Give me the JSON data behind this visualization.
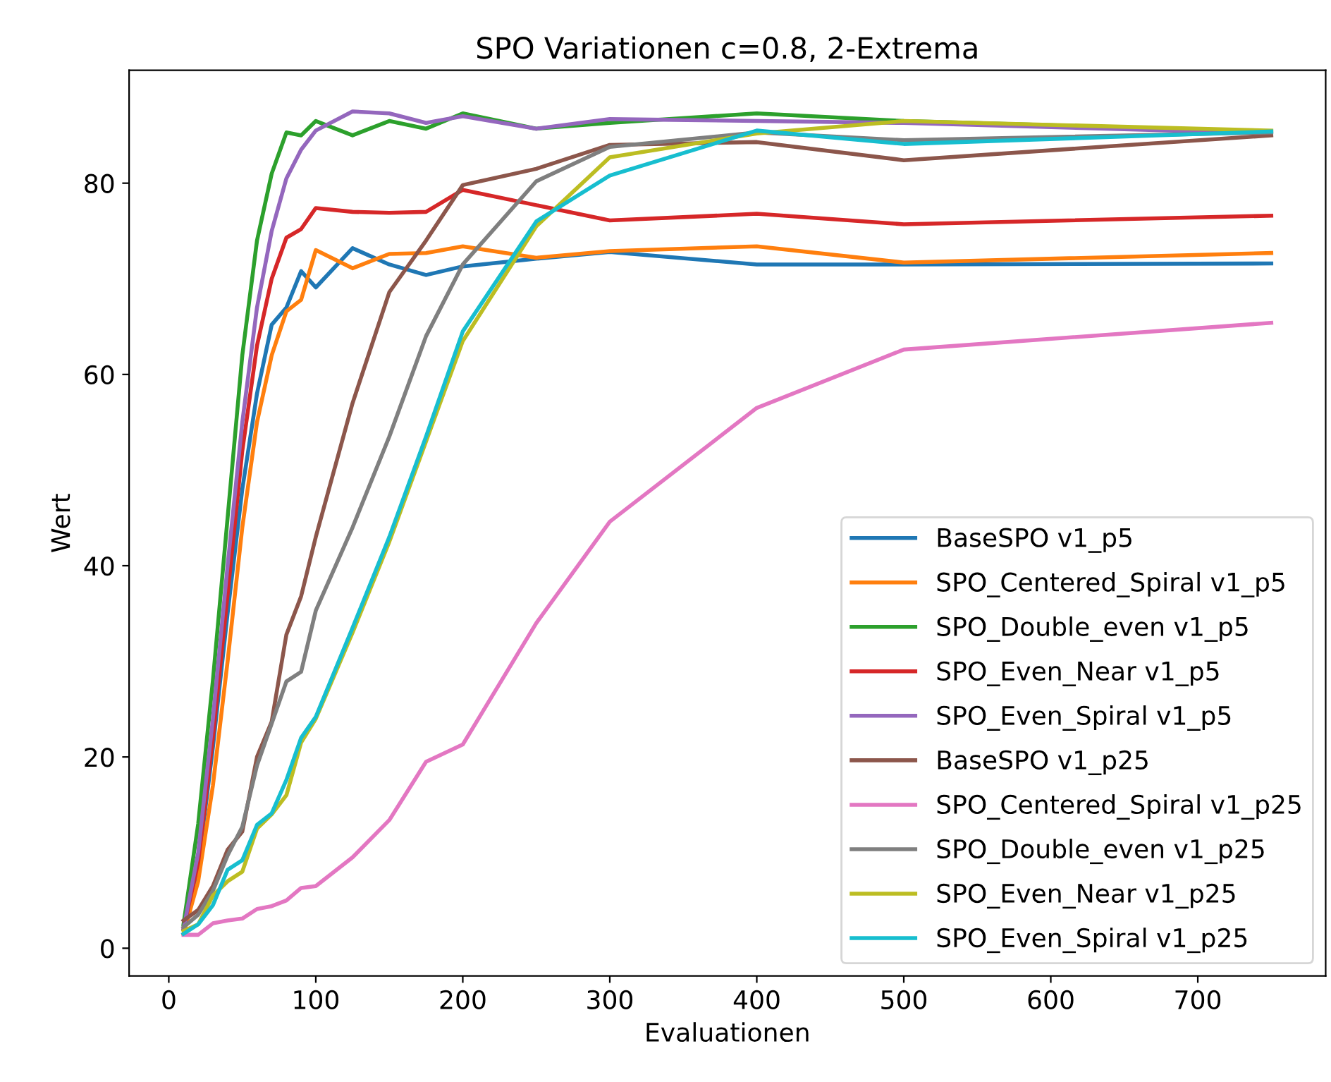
{
  "chart_data": {
    "type": "line",
    "title": "SPO Variationen c=0.8, 2-Extrema",
    "xlabel": "Evaluationen",
    "ylabel": "Wert",
    "x": [
      10,
      20,
      30,
      40,
      50,
      60,
      70,
      80,
      90,
      100,
      125,
      150,
      175,
      200,
      250,
      300,
      400,
      500,
      750
    ],
    "xlim": [
      -27,
      787
    ],
    "xticks": [
      0,
      100,
      200,
      300,
      400,
      500,
      600,
      700
    ],
    "ylim": [
      -2.9,
      91.8
    ],
    "yticks": [
      0,
      20,
      40,
      60,
      80
    ],
    "grid": false,
    "legend": "bottom right",
    "marker": "none",
    "line_style": "solid",
    "series": [
      {
        "name": "BaseSPO v1_p5",
        "color": "#1f77b4",
        "values": [
          2,
          8.5,
          21,
          35,
          48,
          58,
          65.2,
          67,
          70.8,
          69.1,
          73.2,
          71.5,
          70.4,
          71.3,
          72.1,
          72.8,
          71.5,
          71.5,
          71.6
        ]
      },
      {
        "name": "SPO_Centered_Spiral v1_p5",
        "color": "#ff7f0e",
        "values": [
          1.5,
          7,
          17,
          30,
          44,
          55,
          62,
          66.6,
          67.8,
          73,
          71.1,
          72.6,
          72.7,
          73.4,
          72.2,
          72.9,
          73.4,
          71.7,
          72.7
        ]
      },
      {
        "name": "SPO_Double_even v1_p5",
        "color": "#2ca02c",
        "values": [
          2.5,
          13,
          28,
          45,
          62,
          74,
          81,
          85.3,
          85,
          86.5,
          85,
          86.5,
          85.7,
          87.3,
          85.7,
          86.3,
          87.3,
          86.5,
          85.4
        ]
      },
      {
        "name": "SPO_Even_Near v1_p5",
        "color": "#d62728",
        "values": [
          2,
          9,
          22,
          37,
          52,
          63,
          70,
          74.3,
          75.2,
          77.4,
          77,
          76.9,
          77,
          79.3,
          77.7,
          76.1,
          76.8,
          75.7,
          76.6
        ]
      },
      {
        "name": "SPO_Even_Spiral v1_p5",
        "color": "#9467bd",
        "values": [
          2,
          10,
          24,
          40,
          55,
          67,
          75,
          80.5,
          83.5,
          85.5,
          87.5,
          87.3,
          86.3,
          87,
          85.7,
          86.7,
          86.5,
          86.3,
          85.2
        ]
      },
      {
        "name": "BaseSPO v1_p25",
        "color": "#8c564b",
        "values": [
          2.9,
          4,
          6.5,
          10.3,
          12.2,
          20,
          23.7,
          32.8,
          36.8,
          43,
          57,
          68.6,
          74,
          79.8,
          81.5,
          84,
          84.3,
          82.4,
          85
        ]
      },
      {
        "name": "SPO_Centered_Spiral v1_p25",
        "color": "#e377c2",
        "values": [
          1.4,
          1.4,
          2.6,
          2.9,
          3.1,
          4.1,
          4.4,
          5,
          6.3,
          6.5,
          9.5,
          13.4,
          19.5,
          21.3,
          34,
          44.6,
          56.5,
          62.6,
          65.4
        ]
      },
      {
        "name": "SPO_Double_even v1_p25",
        "color": "#7f7f7f",
        "values": [
          2.2,
          3.5,
          6,
          9.7,
          12.7,
          19.1,
          23.5,
          27.9,
          28.9,
          35.3,
          44,
          53.5,
          64,
          71.5,
          80.2,
          83.8,
          85.3,
          84.5,
          85.3
        ]
      },
      {
        "name": "SPO_Even_Near v1_p25",
        "color": "#bcbd22",
        "values": [
          1.8,
          2.5,
          5.5,
          7,
          8,
          12.5,
          14,
          16,
          21.5,
          24,
          33,
          42.5,
          53,
          63.5,
          75.5,
          82.7,
          85.2,
          86.5,
          85.5
        ]
      },
      {
        "name": "SPO_Even_Spiral v1_p25",
        "color": "#17becf",
        "values": [
          1.5,
          2.5,
          4.5,
          8.2,
          9.2,
          12.9,
          14.1,
          17.6,
          22,
          24.2,
          33.5,
          43,
          53.5,
          64.5,
          76,
          80.8,
          85.5,
          84.1,
          85.4
        ]
      }
    ]
  }
}
